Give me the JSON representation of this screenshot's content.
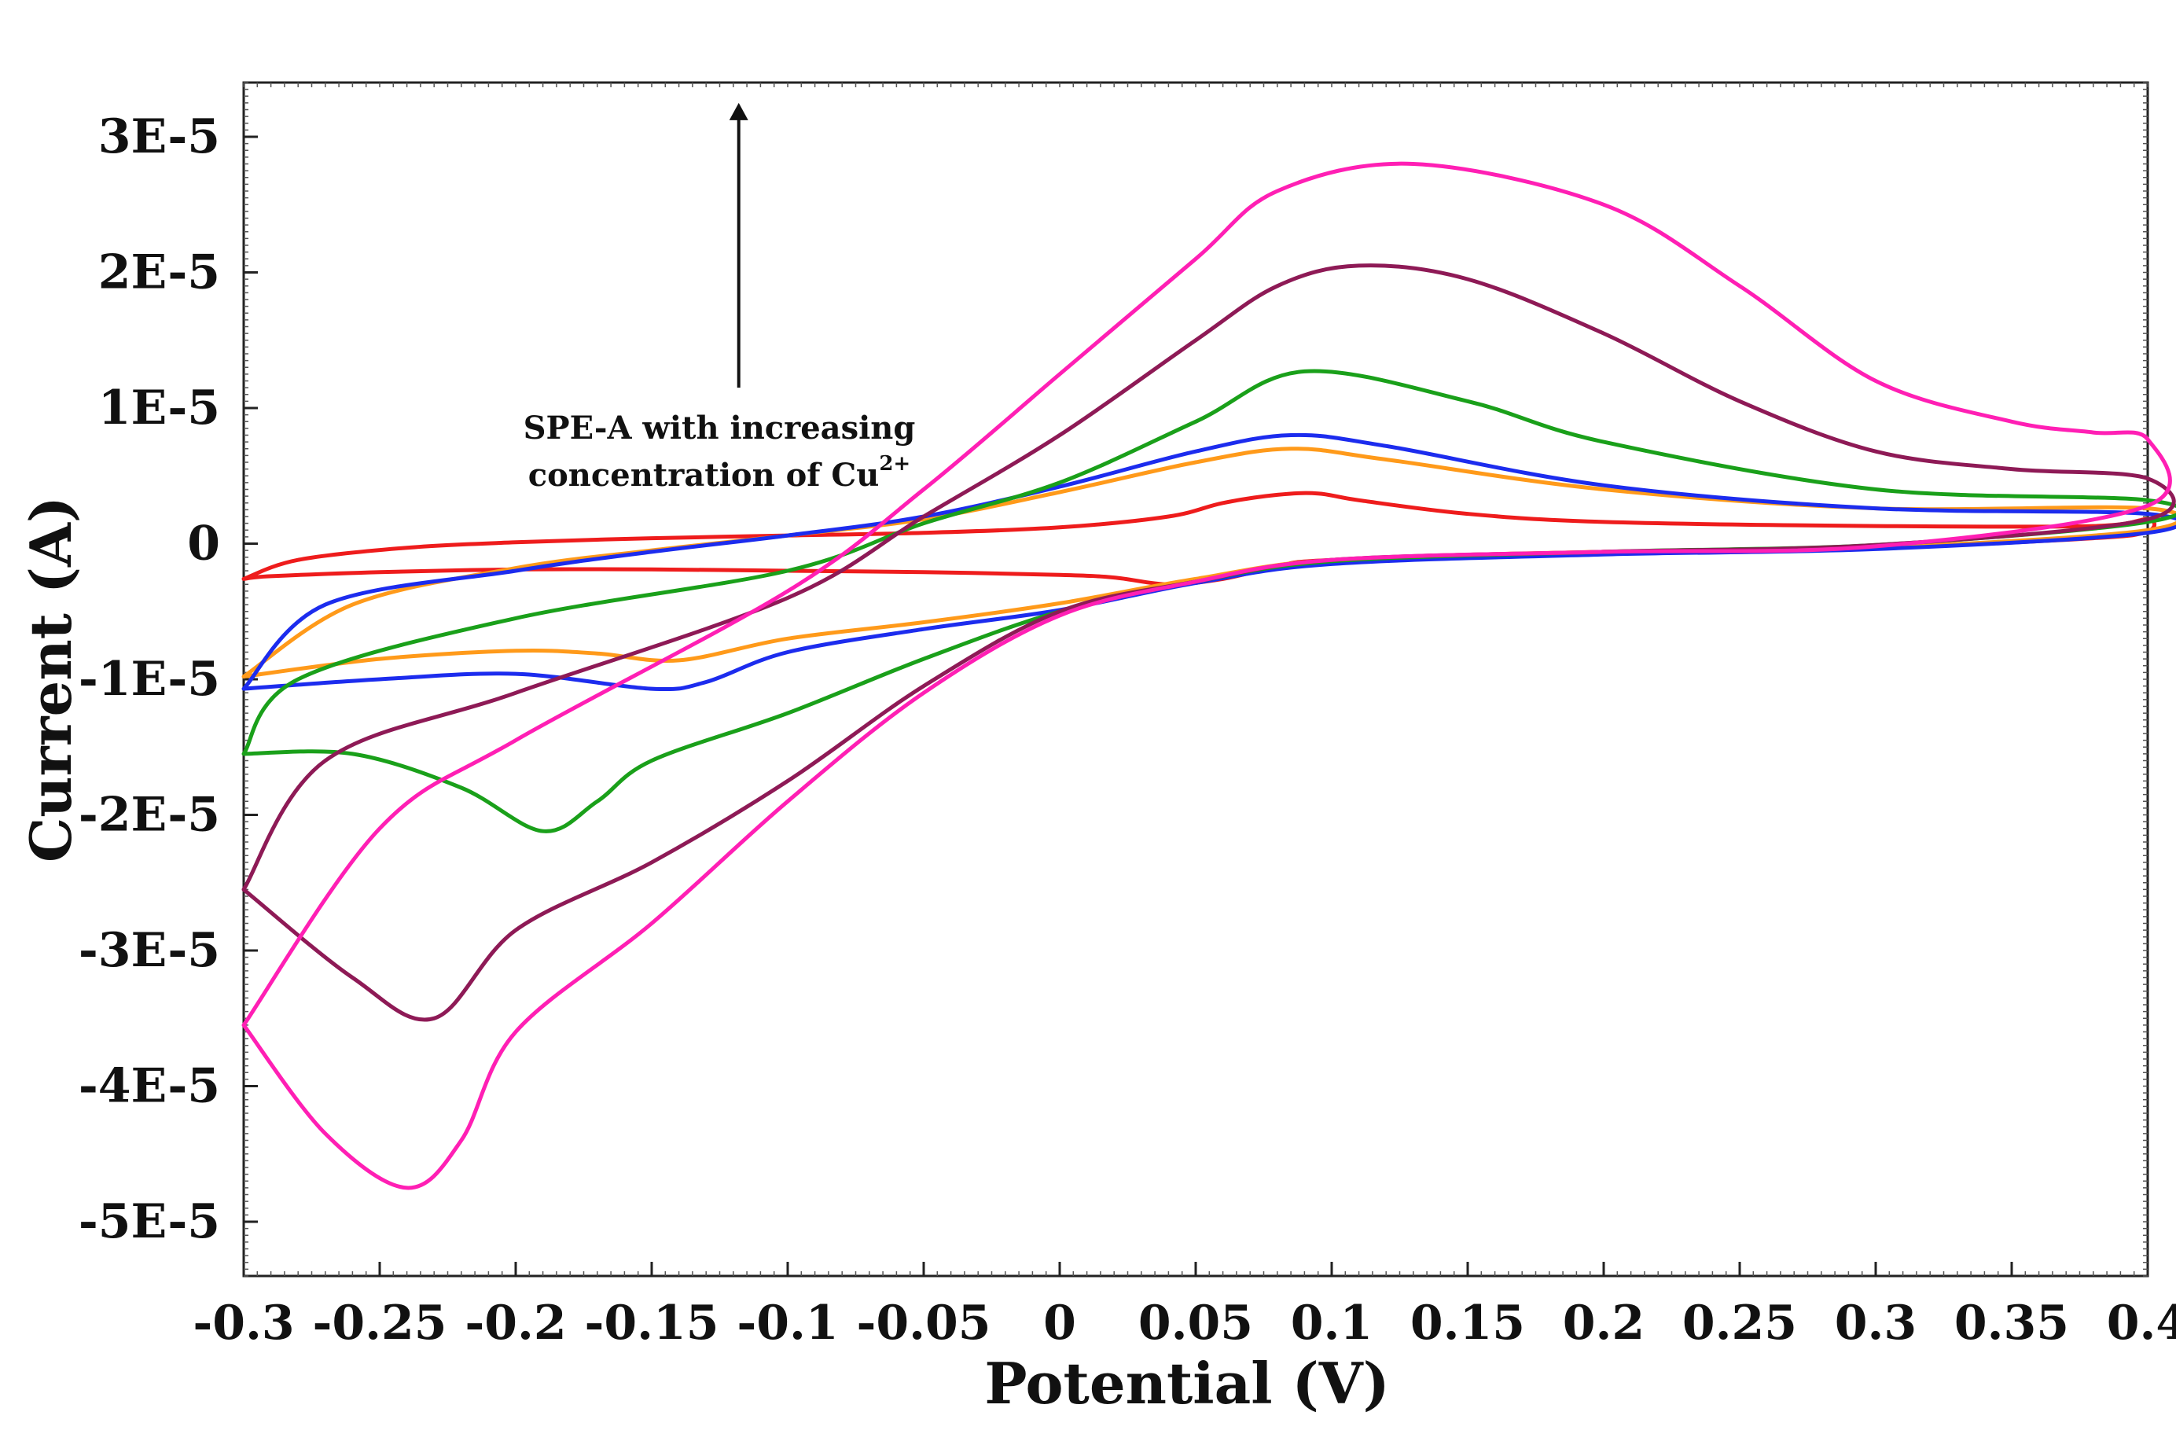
{
  "chart_data": {
    "type": "line",
    "title": "",
    "xlabel": "Potential (V)",
    "ylabel": "Current (A)",
    "xlim": [
      -0.3,
      0.4
    ],
    "ylim": [
      -5.4e-05,
      3.4e-05
    ],
    "grid": false,
    "x_ticks": [
      -0.3,
      -0.25,
      -0.2,
      -0.15,
      -0.1,
      -0.05,
      0,
      0.05,
      0.1,
      0.15,
      0.2,
      0.25,
      0.3,
      0.35,
      0.4
    ],
    "x_tick_labels": [
      "-0.3",
      "-0.25",
      "-0.2",
      "-0.15",
      "-0.1",
      "-0.05",
      "0",
      "0.05",
      "0.1",
      "0.15",
      "0.2",
      "0.25",
      "0.3",
      "0.35",
      "0.4"
    ],
    "y_ticks": [
      3e-05,
      2e-05,
      1e-05,
      0,
      -1e-05,
      -2e-05,
      -3e-05,
      -4e-05,
      -5e-05
    ],
    "y_tick_labels": [
      "3E-5",
      "2E-5",
      "1E-5",
      "0",
      "-1E-5",
      "-2E-5",
      "-3E-5",
      "-4E-5",
      "-5E-5"
    ],
    "annotation": {
      "line1": "SPE-A with increasing",
      "line2": "concentration of  Cu",
      "superscript": "2+",
      "arrow_x": -0.118,
      "arrow_y_start": 1.15e-05,
      "arrow_y_end": 3.25e-05
    },
    "series": [
      {
        "name": "red",
        "color": "#ee1c1c",
        "x": [
          -0.3,
          -0.28,
          -0.24,
          -0.2,
          -0.15,
          -0.1,
          -0.05,
          0,
          0.04,
          0.06,
          0.08,
          0.095,
          0.11,
          0.15,
          0.2,
          0.3,
          0.38,
          0.4,
          0.4,
          0.38,
          0.3,
          0.2,
          0.1,
          0.08,
          0.06,
          0.04,
          0.02,
          0,
          -0.05,
          -0.1,
          -0.15,
          -0.2,
          -0.25,
          -0.29,
          -0.3
        ],
        "y": [
          -2.6e-06,
          -1.2e-06,
          -3e-07,
          1e-07,
          4e-07,
          6e-07,
          8e-07,
          1.2e-06,
          2e-06,
          3e-06,
          3.6e-06,
          3.7e-06,
          3.2e-06,
          2.2e-06,
          1.6e-06,
          1.3e-06,
          1.3e-06,
          1.8e-06,
          9e-07,
          4e-07,
          -3e-07,
          -6e-07,
          -1.2e-06,
          -1.7e-06,
          -2.6e-06,
          -3e-06,
          -2.5e-06,
          -2.3e-06,
          -2.1e-06,
          -2e-06,
          -1.9e-06,
          -1.9e-06,
          -2.1e-06,
          -2.4e-06,
          -2.6e-06
        ]
      },
      {
        "name": "orange",
        "color": "#ff9a1a",
        "x": [
          -0.3,
          -0.26,
          -0.2,
          -0.15,
          -0.1,
          -0.05,
          0,
          0.05,
          0.085,
          0.12,
          0.2,
          0.3,
          0.4,
          0.4,
          0.3,
          0.2,
          0.1,
          0.05,
          0,
          -0.05,
          -0.1,
          -0.14,
          -0.17,
          -0.2,
          -0.25,
          -0.3
        ],
        "y": [
          -9.8e-06,
          -4.5e-06,
          -1.8e-06,
          -5e-07,
          6e-07,
          1.8e-06,
          3.8e-06,
          6e-06,
          7e-06,
          6.2e-06,
          4e-06,
          2.6e-06,
          2.6e-06,
          1e-06,
          -3e-07,
          -6e-07,
          -1.2e-06,
          -2.6e-06,
          -4.4e-06,
          -5.8e-06,
          -7e-06,
          -8.6e-06,
          -8.1e-06,
          -7.9e-06,
          -8.5e-06,
          -9.8e-06
        ]
      },
      {
        "name": "blue",
        "color": "#1c2cee",
        "x": [
          -0.3,
          -0.27,
          -0.2,
          -0.15,
          -0.1,
          -0.05,
          0,
          0.05,
          0.085,
          0.12,
          0.2,
          0.3,
          0.4,
          0.4,
          0.3,
          0.2,
          0.1,
          0.05,
          0,
          -0.05,
          -0.1,
          -0.13,
          -0.15,
          -0.2,
          -0.25,
          -0.3
        ],
        "y": [
          -1.07e-05,
          -4.5e-06,
          -2e-06,
          -6e-07,
          6e-07,
          2e-06,
          4.2e-06,
          6.8e-06,
          8e-06,
          7.2e-06,
          4.3e-06,
          2.6e-06,
          2.2e-06,
          8e-07,
          -4e-07,
          -8e-07,
          -1.5e-06,
          -2.9e-06,
          -4.9e-06,
          -6.3e-06,
          -8e-06,
          -1.02e-05,
          -1.07e-05,
          -9.6e-06,
          -1e-05,
          -1.07e-05
        ]
      },
      {
        "name": "green",
        "color": "#1aa01a",
        "x": [
          -0.3,
          -0.28,
          -0.2,
          -0.1,
          -0.05,
          0,
          0.05,
          0.09,
          0.15,
          0.2,
          0.3,
          0.4,
          0.4,
          0.3,
          0.2,
          0.1,
          0.05,
          0,
          -0.05,
          -0.1,
          -0.15,
          -0.17,
          -0.19,
          -0.22,
          -0.26,
          -0.3
        ],
        "y": [
          -1.55e-05,
          -1e-05,
          -5.5e-06,
          -2e-06,
          1.5e-06,
          4.5e-06,
          9e-06,
          1.27e-05,
          1.05e-05,
          7.5e-06,
          4e-06,
          3.2e-06,
          1.6e-06,
          -1e-07,
          -6e-07,
          -1.3e-06,
          -2.8e-06,
          -5e-06,
          -8.5e-06,
          -1.25e-05,
          -1.6e-05,
          -1.9e-05,
          -2.12e-05,
          -1.8e-05,
          -1.55e-05,
          -1.55e-05
        ]
      },
      {
        "name": "purple",
        "color": "#8e1a56",
        "x": [
          -0.3,
          -0.27,
          -0.2,
          -0.1,
          -0.05,
          0,
          0.05,
          0.08,
          0.11,
          0.15,
          0.2,
          0.25,
          0.3,
          0.35,
          0.4,
          0.4,
          0.3,
          0.2,
          0.1,
          0.05,
          0,
          -0.05,
          -0.1,
          -0.15,
          -0.2,
          -0.23,
          -0.26,
          -0.3
        ],
        "y": [
          -2.55e-05,
          -1.6e-05,
          -1.1e-05,
          -4e-06,
          2e-06,
          8e-06,
          1.5e-05,
          1.9e-05,
          2.05e-05,
          1.95e-05,
          1.55e-05,
          1.05e-05,
          6.8e-06,
          5.5e-06,
          4.8e-06,
          1.8e-06,
          -1e-07,
          -6e-07,
          -1.2e-06,
          -2.8e-06,
          -5e-06,
          -1.05e-05,
          -1.75e-05,
          -2.35e-05,
          -2.85e-05,
          -3.5e-05,
          -3.2e-05,
          -2.55e-05
        ]
      },
      {
        "name": "pink",
        "color": "#ff1fb4",
        "x": [
          -0.3,
          -0.25,
          -0.2,
          -0.1,
          -0.05,
          0,
          0.05,
          0.08,
          0.13,
          0.2,
          0.25,
          0.3,
          0.35,
          0.38,
          0.4,
          0.4,
          0.3,
          0.2,
          0.1,
          0.05,
          0,
          -0.05,
          -0.1,
          -0.15,
          -0.2,
          -0.22,
          -0.24,
          -0.27,
          -0.3
        ],
        "y": [
          -3.55e-05,
          -2.1e-05,
          -1.45e-05,
          -3.5e-06,
          4e-06,
          1.25e-05,
          2.1e-05,
          2.6e-05,
          2.8e-05,
          2.5e-05,
          1.9e-05,
          1.2e-05,
          9e-06,
          8.2e-06,
          7.7e-06,
          2.8e-06,
          -2e-07,
          -6e-07,
          -1.2e-06,
          -2.8e-06,
          -5.3e-06,
          -1.1e-05,
          -1.9e-05,
          -2.8e-05,
          -3.6e-05,
          -4.4e-05,
          -4.75e-05,
          -4.35e-05,
          -3.55e-05
        ]
      }
    ]
  }
}
